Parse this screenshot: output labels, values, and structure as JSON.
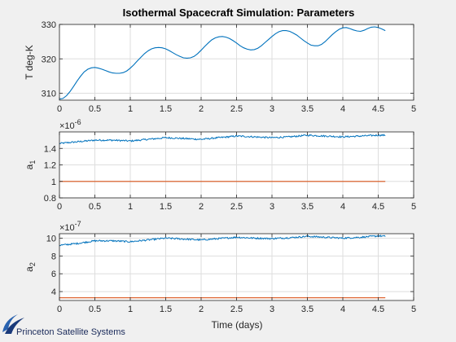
{
  "figure": {
    "title": "Isothermal Spacecraft Simulation: Parameters",
    "xlabel": "Time (days)",
    "logo_text": "Princeton Satellite Systems"
  },
  "colors": {
    "background": "#f0f0f0",
    "axes_face": "#ffffff",
    "series_blue": "#0072bd",
    "series_orange": "#d95319",
    "grid": "#dedede",
    "axis": "#262626"
  },
  "chart_data": [
    {
      "type": "line",
      "ylabel": "T deg-K",
      "ylim": [
        308,
        330
      ],
      "yticks": [
        310,
        320,
        330
      ],
      "ytick_labels": [
        "310",
        "320",
        "330"
      ],
      "xlim": [
        0,
        5
      ],
      "xticks": [
        0,
        0.5,
        1,
        1.5,
        2,
        2.5,
        3,
        3.5,
        4,
        4.5,
        5
      ],
      "xtick_labels": [
        "0",
        "0.5",
        "1",
        "1.5",
        "2",
        "2.5",
        "3",
        "3.5",
        "4",
        "4.5",
        "5"
      ],
      "exponent_label": "",
      "grid": true,
      "series": [
        {
          "color": "series_blue",
          "noisy": false,
          "x": [
            0,
            0.05,
            0.1,
            0.15,
            0.2,
            0.25,
            0.3,
            0.35,
            0.4,
            0.45,
            0.5,
            0.55,
            0.6,
            0.65,
            0.7,
            0.75,
            0.8,
            0.85,
            0.9,
            0.95,
            1.0,
            1.05,
            1.1,
            1.15,
            1.2,
            1.25,
            1.3,
            1.35,
            1.4,
            1.45,
            1.5,
            1.55,
            1.6,
            1.65,
            1.7,
            1.75,
            1.8,
            1.85,
            1.9,
            1.95,
            2.0,
            2.05,
            2.1,
            2.15,
            2.2,
            2.25,
            2.3,
            2.35,
            2.4,
            2.45,
            2.5,
            2.55,
            2.6,
            2.65,
            2.7,
            2.75,
            2.8,
            2.85,
            2.9,
            2.95,
            3.0,
            3.05,
            3.1,
            3.15,
            3.2,
            3.25,
            3.3,
            3.35,
            3.4,
            3.45,
            3.5,
            3.55,
            3.6,
            3.65,
            3.7,
            3.75,
            3.8,
            3.85,
            3.9,
            3.95,
            4.0,
            4.05,
            4.1,
            4.15,
            4.2,
            4.25,
            4.3,
            4.35,
            4.4,
            4.45,
            4.5,
            4.55,
            4.6
          ],
          "y": [
            308.3,
            308.5,
            309.3,
            310.5,
            312.0,
            313.6,
            315.0,
            316.2,
            317.0,
            317.4,
            317.5,
            317.3,
            317.0,
            316.6,
            316.2,
            315.9,
            315.8,
            315.8,
            316.0,
            316.5,
            317.3,
            318.3,
            319.4,
            320.5,
            321.5,
            322.3,
            322.9,
            323.2,
            323.3,
            323.2,
            322.9,
            322.4,
            321.8,
            321.2,
            320.7,
            320.3,
            320.2,
            320.3,
            320.7,
            321.5,
            322.5,
            323.6,
            324.6,
            325.5,
            326.1,
            326.4,
            326.5,
            326.3,
            325.9,
            325.3,
            324.6,
            323.8,
            323.2,
            322.8,
            322.6,
            322.7,
            323.1,
            323.8,
            324.7,
            325.6,
            326.5,
            327.3,
            327.9,
            328.2,
            328.2,
            328.0,
            327.5,
            326.9,
            326.1,
            325.3,
            324.6,
            324.0,
            323.8,
            323.8,
            324.2,
            325.0,
            326.0,
            327.0,
            327.9,
            328.6,
            329.0,
            329.1,
            328.8,
            328.4,
            328.1,
            328.0,
            328.3,
            328.8,
            329.2,
            329.3,
            329.1,
            328.7,
            328.2
          ]
        }
      ]
    },
    {
      "type": "line",
      "ylabel": "a",
      "ylabel_subscript": "1",
      "ylim": [
        0.8,
        1.6
      ],
      "yticks": [
        0.8,
        1.0,
        1.2,
        1.4
      ],
      "ytick_labels": [
        "0.8",
        "1",
        "1.2",
        "1.4"
      ],
      "xlim": [
        0,
        5
      ],
      "xticks": [
        0,
        0.5,
        1,
        1.5,
        2,
        2.5,
        3,
        3.5,
        4,
        4.5,
        5
      ],
      "xtick_labels": [
        "0",
        "0.5",
        "1",
        "1.5",
        "2",
        "2.5",
        "3",
        "3.5",
        "4",
        "4.5",
        "5"
      ],
      "exponent_label": "×10",
      "exponent_power": "-6",
      "grid": true,
      "series": [
        {
          "color": "series_blue",
          "noisy": true,
          "x": [
            0,
            0.25,
            0.5,
            0.75,
            1.0,
            1.25,
            1.5,
            1.75,
            2.0,
            2.25,
            2.5,
            2.75,
            3.0,
            3.25,
            3.5,
            3.75,
            4.0,
            4.25,
            4.5,
            4.6
          ],
          "y": [
            1.46,
            1.48,
            1.5,
            1.5,
            1.49,
            1.51,
            1.53,
            1.52,
            1.51,
            1.53,
            1.55,
            1.54,
            1.53,
            1.54,
            1.56,
            1.55,
            1.54,
            1.55,
            1.56,
            1.56
          ]
        },
        {
          "color": "series_orange",
          "noisy": false,
          "x": [
            0,
            4.6
          ],
          "y": [
            1.0,
            1.0
          ]
        }
      ]
    },
    {
      "type": "line",
      "ylabel": "a",
      "ylabel_subscript": "2",
      "ylim": [
        3,
        10.5
      ],
      "yticks": [
        4,
        6,
        8,
        10
      ],
      "ytick_labels": [
        "4",
        "6",
        "8",
        "10"
      ],
      "xlim": [
        0,
        5
      ],
      "xticks": [
        0,
        0.5,
        1,
        1.5,
        2,
        2.5,
        3,
        3.5,
        4,
        4.5,
        5
      ],
      "xtick_labels": [
        "0",
        "0.5",
        "1",
        "1.5",
        "2",
        "2.5",
        "3",
        "3.5",
        "4",
        "4.5",
        "5"
      ],
      "exponent_label": "×10",
      "exponent_power": "-7",
      "grid": true,
      "series": [
        {
          "color": "series_blue",
          "noisy": true,
          "x": [
            0,
            0.25,
            0.5,
            0.75,
            1.0,
            1.25,
            1.5,
            1.75,
            2.0,
            2.25,
            2.5,
            2.75,
            3.0,
            3.25,
            3.5,
            3.75,
            4.0,
            4.25,
            4.5,
            4.6
          ],
          "y": [
            9.2,
            9.4,
            9.7,
            9.7,
            9.6,
            9.8,
            10.0,
            9.9,
            9.8,
            9.95,
            10.1,
            10.0,
            9.95,
            10.05,
            10.2,
            10.1,
            10.0,
            10.1,
            10.25,
            10.2
          ]
        },
        {
          "color": "series_orange",
          "noisy": false,
          "x": [
            0,
            4.6
          ],
          "y": [
            3.3,
            3.3
          ]
        }
      ]
    }
  ]
}
